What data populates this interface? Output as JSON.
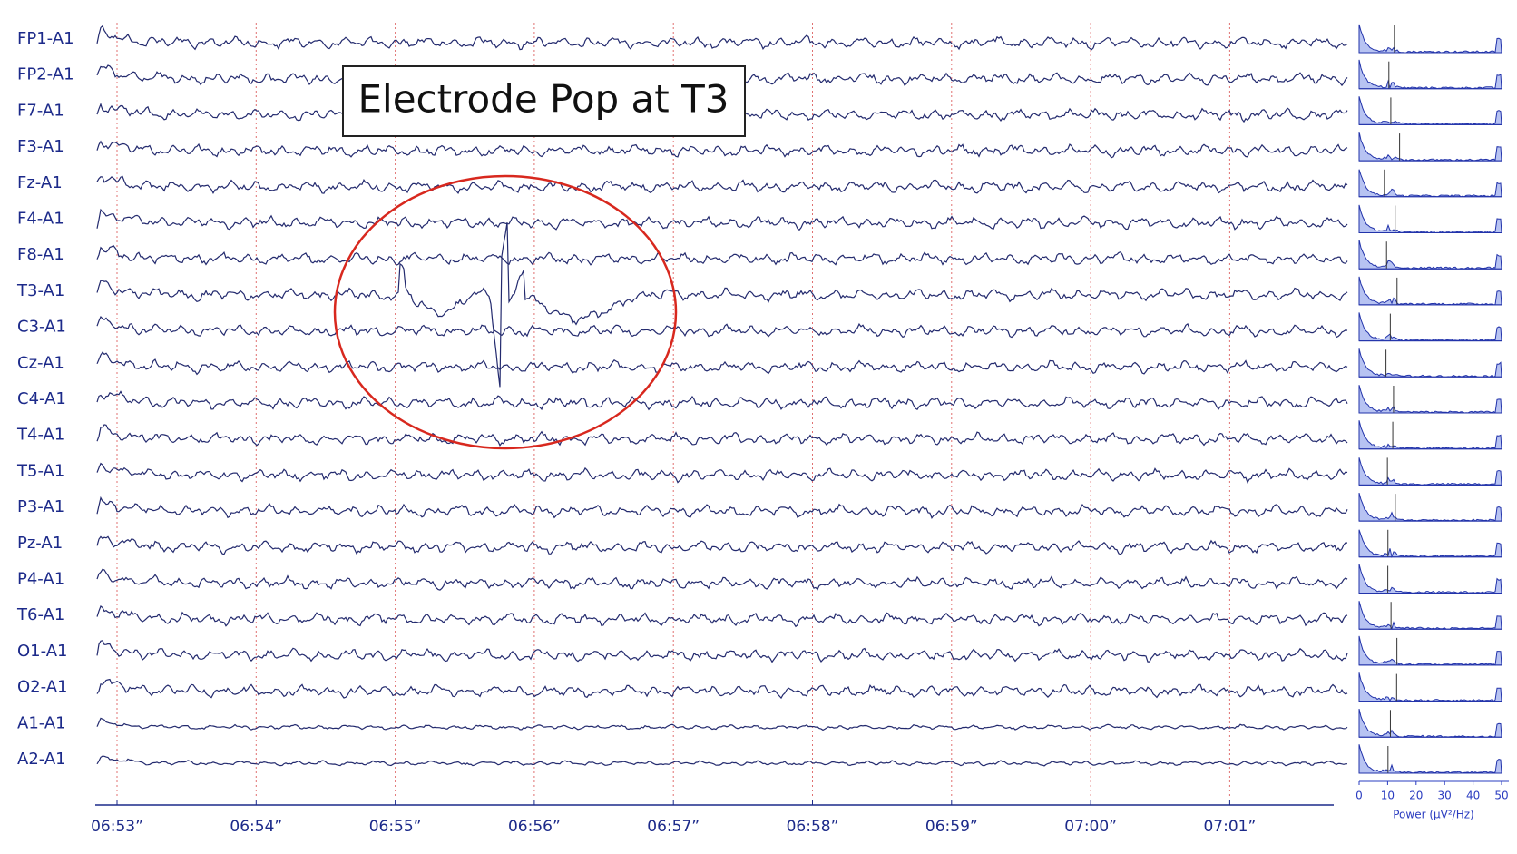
{
  "annotation": "Electrode Pop at T3",
  "channels": [
    "FP1-A1",
    "FP2-A1",
    "F7-A1",
    "F3-A1",
    "Fz-A1",
    "F4-A1",
    "F8-A1",
    "T3-A1",
    "C3-A1",
    "Cz-A1",
    "C4-A1",
    "T4-A1",
    "T5-A1",
    "P3-A1",
    "Pz-A1",
    "P4-A1",
    "T6-A1",
    "O1-A1",
    "O2-A1",
    "A1-A1",
    "A2-A1"
  ],
  "time_labels": [
    "06:53”",
    "06:54”",
    "06:55”",
    "06:56”",
    "06:57”",
    "06:58”",
    "06:59”",
    "07:00”",
    "07:01”"
  ],
  "spectrum": {
    "xlabel": "Power (µV²/Hz)",
    "xlim": [
      0,
      50
    ],
    "xticks": [
      0,
      10,
      20,
      30,
      40,
      50
    ]
  }
}
